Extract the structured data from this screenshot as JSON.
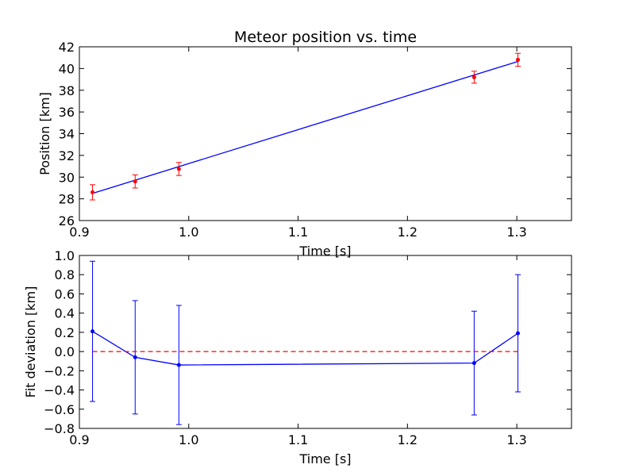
{
  "chart_data": [
    {
      "type": "line",
      "title": "Meteor position vs. time",
      "xlabel": "Time [s]",
      "ylabel": "Position [km]",
      "xlim": [
        0.9,
        1.35
      ],
      "ylim": [
        26,
        42
      ],
      "xticks": [
        "0.9",
        "1.0",
        "1.1",
        "1.2",
        "1.3"
      ],
      "yticks": [
        "26",
        "28",
        "30",
        "32",
        "34",
        "36",
        "38",
        "40",
        "42"
      ],
      "grid": false,
      "series": [
        {
          "kind": "fit-line",
          "color": "#0000ff",
          "x": [
            0.912,
            1.301
          ],
          "y": [
            28.5,
            40.65
          ]
        },
        {
          "kind": "points-with-errorbars",
          "color": "#ff0000",
          "x": [
            0.912,
            0.951,
            0.991,
            1.261,
            1.301
          ],
          "y": [
            28.6,
            29.6,
            30.75,
            39.2,
            40.8
          ],
          "yerr": [
            0.7,
            0.6,
            0.6,
            0.55,
            0.6
          ]
        }
      ]
    },
    {
      "type": "line",
      "title": "",
      "xlabel": "Time [s]",
      "ylabel": "Fit deviation [km]",
      "xlim": [
        0.9,
        1.35
      ],
      "ylim": [
        -0.8,
        1.0
      ],
      "xticks": [
        "0.9",
        "1.0",
        "1.1",
        "1.2",
        "1.3"
      ],
      "yticks": [
        "−0.8",
        "−0.6",
        "−0.4",
        "−0.2",
        "0.0",
        "0.2",
        "0.4",
        "0.6",
        "0.8",
        "1.0"
      ],
      "grid": false,
      "series": [
        {
          "kind": "points-with-errorbars",
          "color": "#0000ff",
          "x": [
            0.912,
            0.951,
            0.991,
            1.261,
            1.301
          ],
          "y": [
            0.21,
            -0.06,
            -0.14,
            -0.12,
            0.19
          ],
          "yerr": [
            0.73,
            0.59,
            0.62,
            0.54,
            0.61
          ]
        },
        {
          "kind": "reference-line",
          "color": "#ff0000",
          "style": "dashed",
          "x": [
            0.912,
            1.301
          ],
          "y": [
            0.0,
            0.0
          ]
        }
      ]
    }
  ]
}
